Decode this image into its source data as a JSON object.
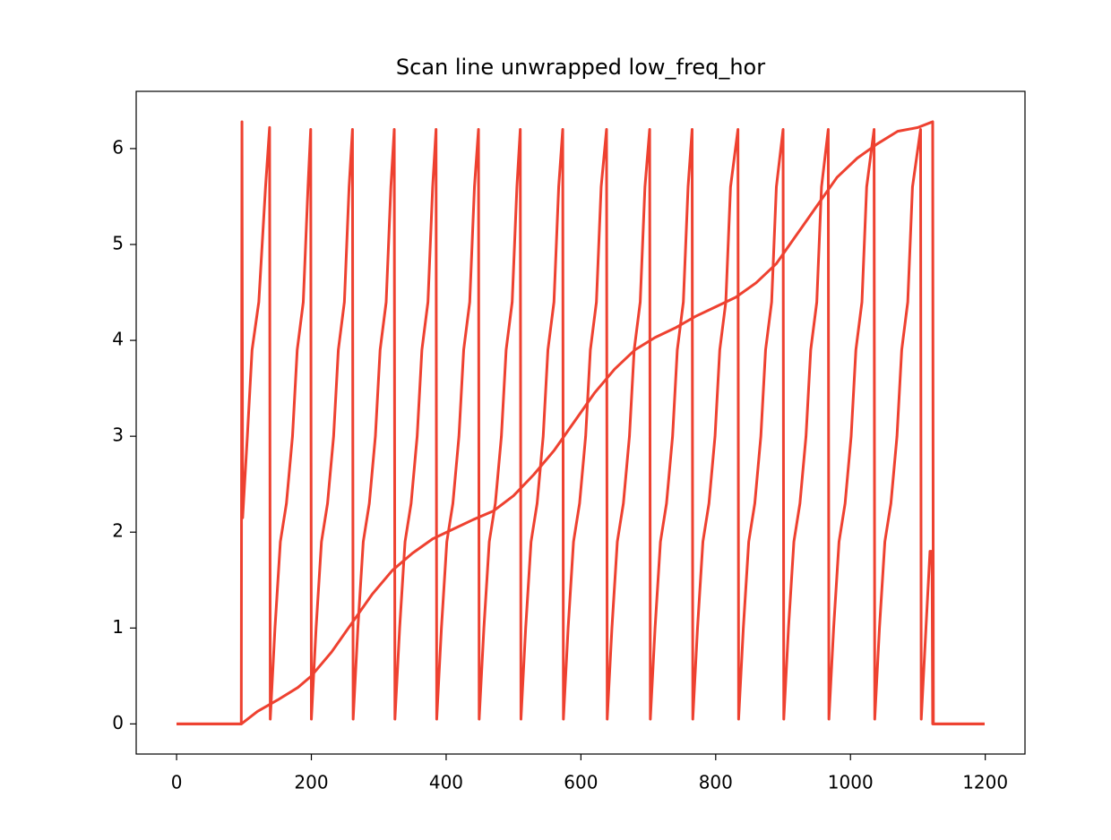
{
  "chart_data": {
    "type": "line",
    "title": "Scan line unwrapped low_freq_hor",
    "xlim": [
      -59.95,
      1258.95
    ],
    "ylim": [
      -0.314,
      6.597
    ],
    "xticks": [
      0,
      200,
      400,
      600,
      800,
      1000,
      1200
    ],
    "yticks": [
      0,
      1,
      2,
      3,
      4,
      5,
      6
    ],
    "grid": false,
    "series": [
      {
        "color": "#ee4130",
        "x": [
          0,
          96,
          97,
          98,
          105,
          112,
          122,
          132,
          138,
          139,
          146,
          154,
          163,
          172,
          179,
          188,
          195,
          199,
          200,
          207,
          215,
          224,
          233,
          240,
          249,
          256,
          261,
          262,
          269,
          277,
          286,
          295,
          302,
          311,
          318,
          323,
          324,
          331,
          339,
          348,
          357,
          364,
          373,
          380,
          385,
          386,
          393,
          401,
          410,
          419,
          426,
          435,
          442,
          448,
          449,
          456,
          464,
          473,
          482,
          489,
          498,
          505,
          510,
          511,
          518,
          526,
          535,
          544,
          551,
          560,
          567,
          573,
          574,
          581,
          589,
          598,
          607,
          614,
          623,
          630,
          638,
          639,
          646,
          654,
          663,
          672,
          679,
          688,
          695,
          702,
          703,
          710,
          718,
          727,
          736,
          743,
          752,
          759,
          765,
          766,
          773,
          781,
          790,
          799,
          806,
          815,
          822,
          833,
          834,
          841,
          849,
          858,
          867,
          874,
          883,
          890,
          900,
          901,
          908,
          916,
          925,
          934,
          941,
          950,
          957,
          967,
          968,
          975,
          983,
          992,
          1001,
          1008,
          1017,
          1024,
          1035,
          1036,
          1043,
          1051,
          1060,
          1069,
          1076,
          1085,
          1092,
          1104,
          1105,
          1112,
          1118,
          1121,
          1122,
          1199
        ],
        "values": [
          0,
          0,
          6.28,
          2.15,
          3.0,
          3.9,
          4.4,
          5.6,
          6.22,
          0.05,
          1.0,
          1.9,
          2.3,
          3.0,
          3.9,
          4.4,
          5.6,
          6.2,
          0.05,
          1.0,
          1.9,
          2.3,
          3.0,
          3.9,
          4.4,
          5.6,
          6.2,
          0.05,
          1.0,
          1.9,
          2.3,
          3.0,
          3.9,
          4.4,
          5.6,
          6.2,
          0.05,
          1.0,
          1.9,
          2.3,
          3.0,
          3.9,
          4.4,
          5.6,
          6.2,
          0.05,
          1.0,
          1.9,
          2.3,
          3.0,
          3.9,
          4.4,
          5.6,
          6.2,
          0.05,
          1.0,
          1.9,
          2.3,
          3.0,
          3.9,
          4.4,
          5.6,
          6.2,
          0.05,
          1.0,
          1.9,
          2.3,
          3.0,
          3.9,
          4.4,
          5.6,
          6.2,
          0.05,
          1.0,
          1.9,
          2.3,
          3.0,
          3.9,
          4.4,
          5.6,
          6.2,
          0.05,
          1.0,
          1.9,
          2.3,
          3.0,
          3.9,
          4.4,
          5.6,
          6.2,
          0.05,
          1.0,
          1.9,
          2.3,
          3.0,
          3.9,
          4.4,
          5.6,
          6.2,
          0.05,
          1.0,
          1.9,
          2.3,
          3.0,
          3.9,
          4.4,
          5.6,
          6.2,
          0.05,
          1.0,
          1.9,
          2.3,
          3.0,
          3.9,
          4.4,
          5.6,
          6.2,
          0.05,
          1.0,
          1.9,
          2.3,
          3.0,
          3.9,
          4.4,
          5.6,
          6.2,
          0.05,
          1.0,
          1.9,
          2.3,
          3.0,
          3.9,
          4.4,
          5.6,
          6.2,
          0.05,
          1.0,
          1.9,
          2.3,
          3.0,
          3.9,
          4.4,
          5.6,
          6.2,
          0.05,
          1.0,
          1.8,
          1.8,
          0,
          0
        ]
      },
      {
        "color": "#ee4130",
        "x": [
          0,
          96,
          120,
          150,
          180,
          200,
          230,
          260,
          290,
          320,
          350,
          380,
          410,
          440,
          470,
          500,
          530,
          560,
          590,
          620,
          650,
          680,
          710,
          740,
          770,
          800,
          830,
          860,
          890,
          920,
          950,
          980,
          1010,
          1040,
          1070,
          1100,
          1122,
          1123,
          1199
        ],
        "values": [
          0,
          0,
          0.13,
          0.25,
          0.38,
          0.5,
          0.75,
          1.05,
          1.35,
          1.6,
          1.78,
          1.93,
          2.03,
          2.13,
          2.22,
          2.38,
          2.6,
          2.85,
          3.15,
          3.45,
          3.7,
          3.9,
          4.03,
          4.13,
          4.25,
          4.35,
          4.45,
          4.6,
          4.8,
          5.1,
          5.4,
          5.7,
          5.9,
          6.05,
          6.18,
          6.22,
          6.28,
          0,
          0
        ]
      }
    ]
  }
}
